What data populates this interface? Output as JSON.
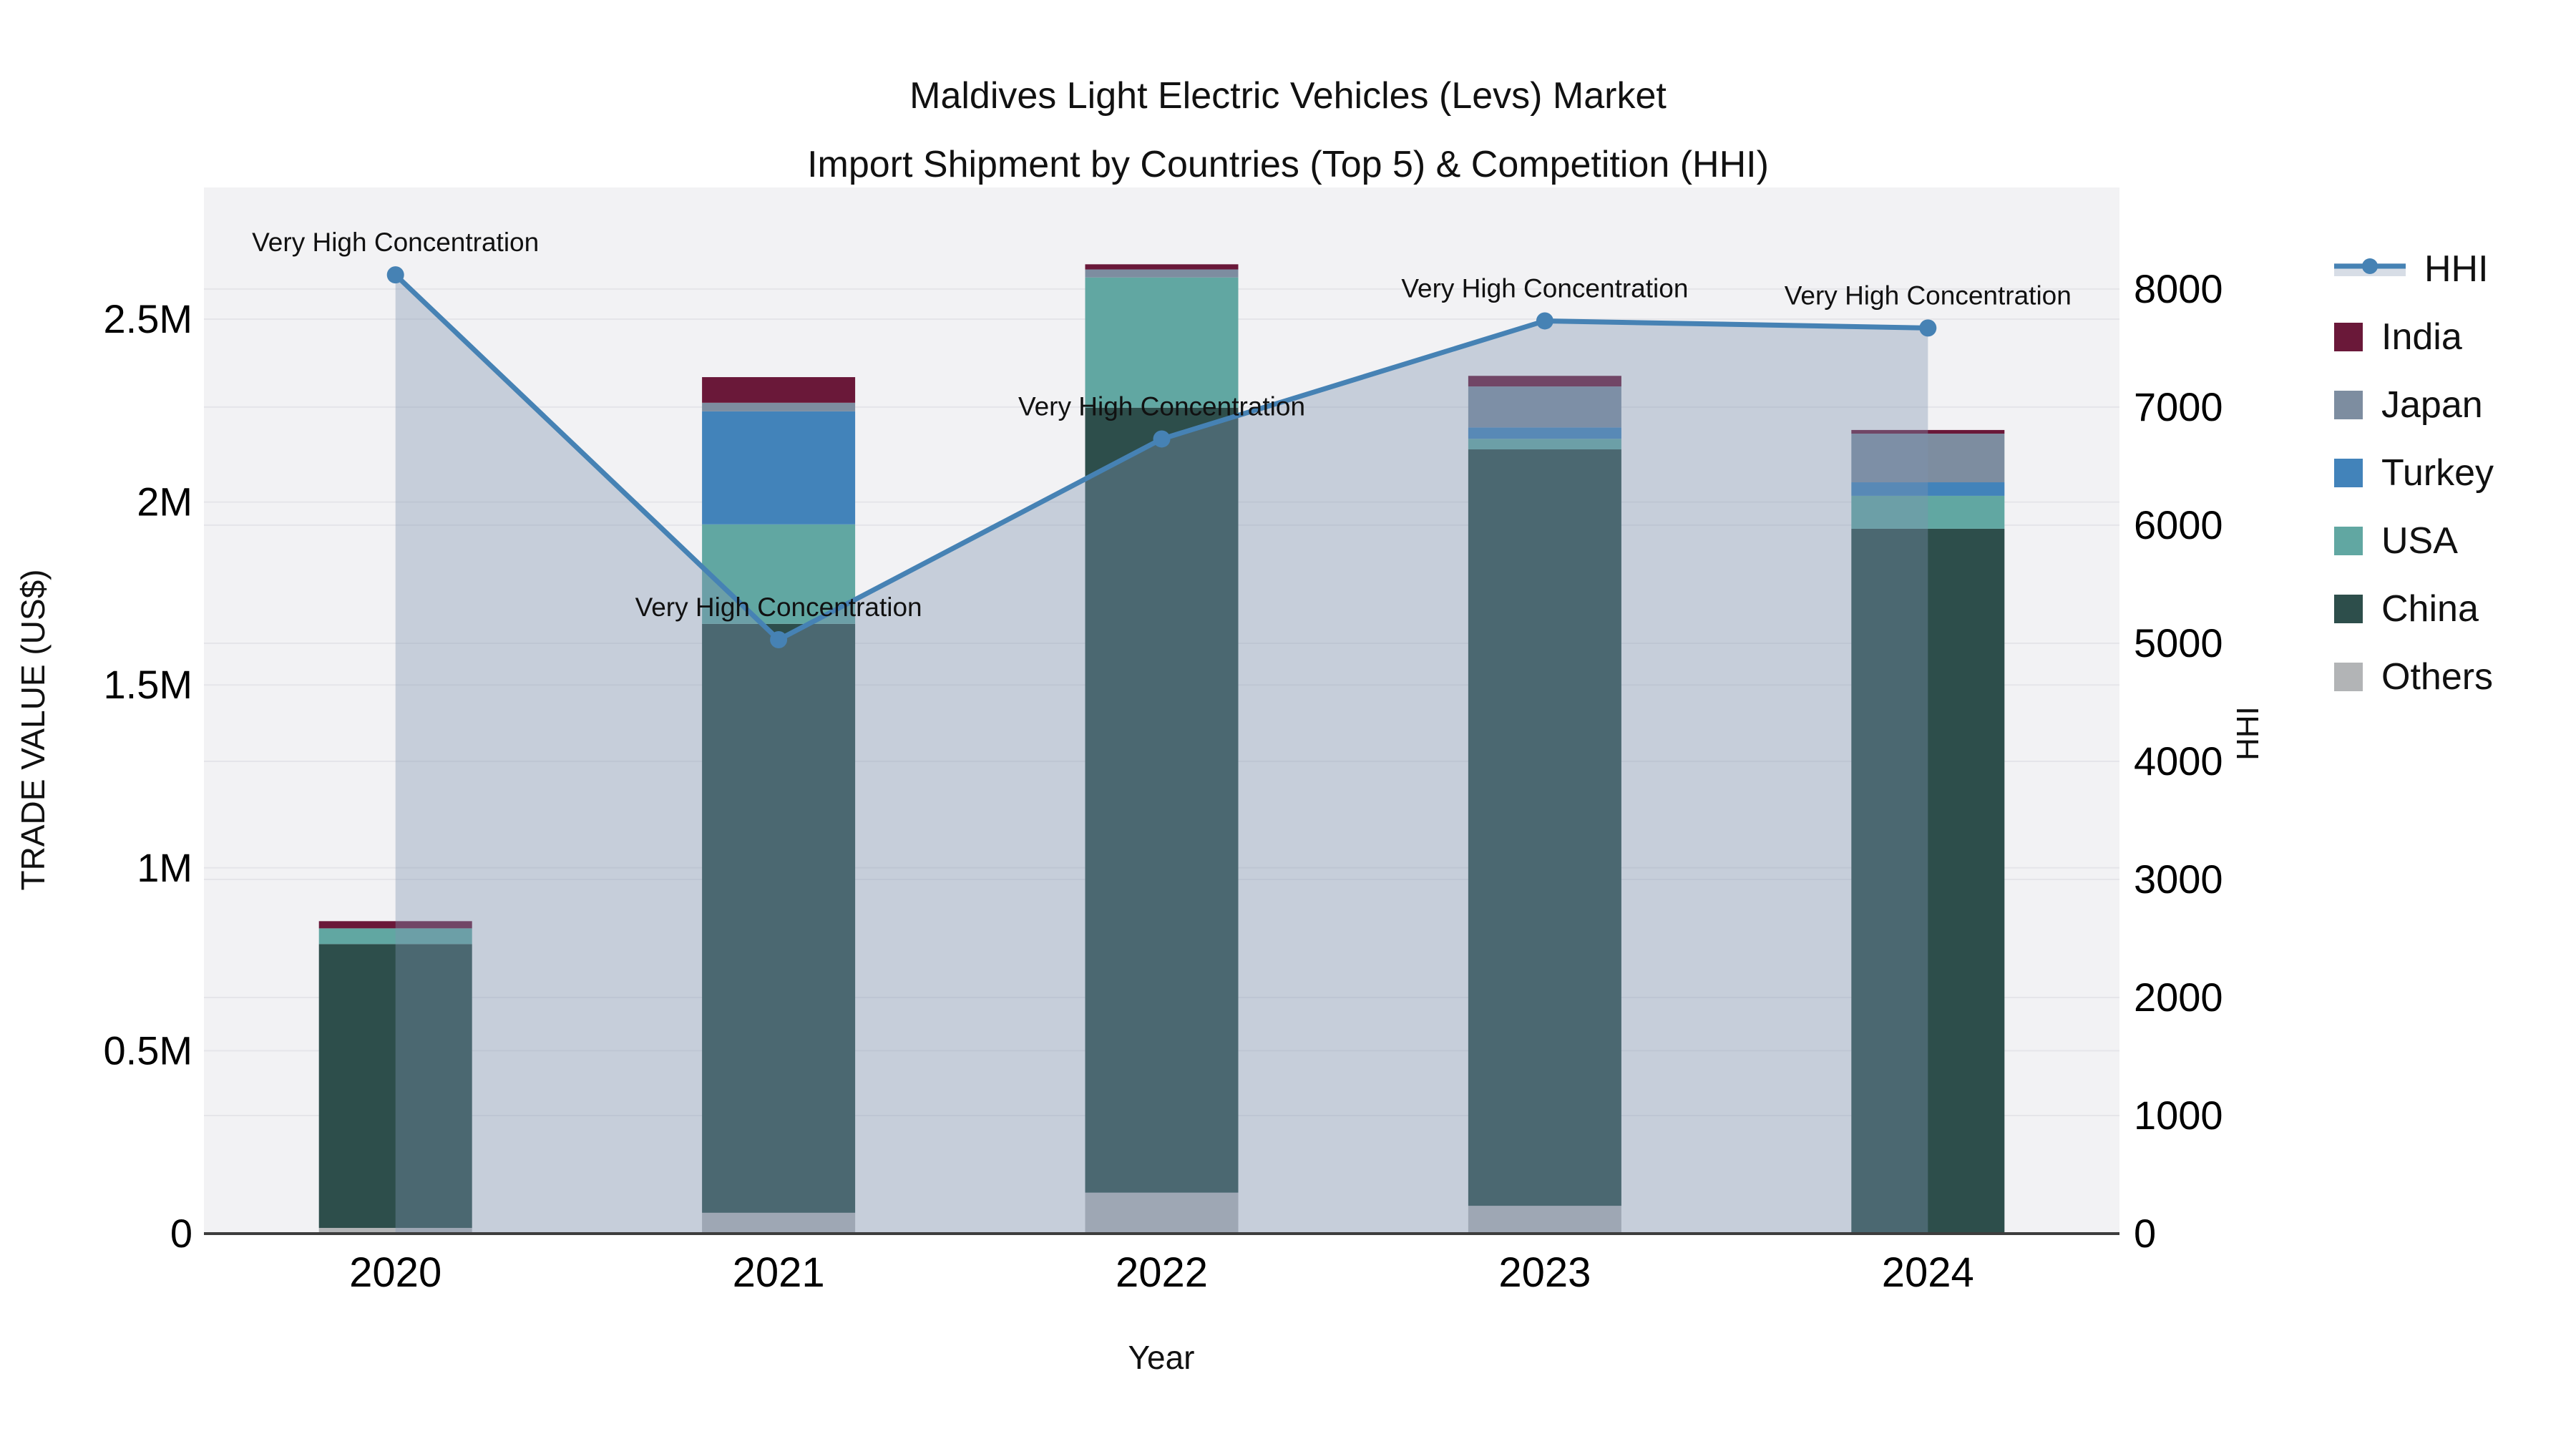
{
  "title": {
    "line1": "Maldives Light Electric Vehicles (Levs) Market",
    "line2": "Import Shipment by Countries (Top 5) & Competition (HHI)"
  },
  "axes": {
    "x_label": "Year",
    "y_left_label": "TRADE VALUE (US$)",
    "y_right_label": "HHI"
  },
  "legend": [
    {
      "label": "HHI",
      "type": "line",
      "color": "#4682b4",
      "band_color": "#d7dde6"
    },
    {
      "label": "India",
      "type": "square",
      "color": "#6a1839"
    },
    {
      "label": "Japan",
      "type": "square",
      "color": "#7d8da0"
    },
    {
      "label": "Turkey",
      "type": "square",
      "color": "#4283ba"
    },
    {
      "label": "USA",
      "type": "square",
      "color": "#61a7a2"
    },
    {
      "label": "China",
      "type": "square",
      "color": "#2d4e4b"
    },
    {
      "label": "Others",
      "type": "square",
      "color": "#b2b4b6"
    }
  ],
  "chart_data": {
    "type": "bar",
    "stacked": true,
    "title": "Maldives Light Electric Vehicles (Levs) Market — Import Shipment by Countries (Top 5) & Competition (HHI)",
    "xlabel": "Year",
    "ylabel_left": "TRADE VALUE (US$)",
    "ylabel_right": "HHI",
    "categories": [
      "2020",
      "2021",
      "2022",
      "2023",
      "2024"
    ],
    "series": [
      {
        "name": "Others",
        "color": "#b2b4b6",
        "values": [
          15600,
          57000,
          112000,
          76000,
          0
        ]
      },
      {
        "name": "China",
        "color": "#2d4e4b",
        "values": [
          776000,
          1610000,
          2146000,
          2068000,
          1927000
        ]
      },
      {
        "name": "USA",
        "color": "#61a7a2",
        "values": [
          43000,
          272000,
          356000,
          29000,
          90000
        ]
      },
      {
        "name": "Turkey",
        "color": "#4283ba",
        "values": [
          0,
          309000,
          0,
          31000,
          37000
        ]
      },
      {
        "name": "Japan",
        "color": "#7d8da0",
        "values": [
          0,
          23500,
          22000,
          112000,
          133000
        ]
      },
      {
        "name": "India",
        "color": "#6a1839",
        "values": [
          19600,
          70000,
          14000,
          29000,
          10000
        ]
      }
    ],
    "totals": [
      854200,
      2341500,
      2650000,
      2345000,
      2197000
    ],
    "line_series": {
      "name": "HHI",
      "axis": "right",
      "color": "#4682b4",
      "marker": "circle",
      "area_fill": "rgba(127,148,175,0.38)",
      "values": [
        8120,
        5030,
        6730,
        7730,
        7670
      ]
    },
    "annotations": [
      {
        "year": "2020",
        "text": "Very High Concentration"
      },
      {
        "year": "2021",
        "text": "Very High Concentration"
      },
      {
        "year": "2022",
        "text": "Very High Concentration"
      },
      {
        "year": "2023",
        "text": "Very High Concentration"
      },
      {
        "year": "2024",
        "text": "Very High Concentration"
      }
    ],
    "ylim_left": [
      0,
      2860000
    ],
    "ylim_right": [
      0,
      8860
    ],
    "yticks_left": {
      "values": [
        0,
        500000,
        1000000,
        1500000,
        2000000,
        2500000
      ],
      "labels": [
        "0",
        "0.5M",
        "1M",
        "1.5M",
        "2M",
        "2.5M"
      ]
    },
    "yticks_right": {
      "values": [
        0,
        1000,
        2000,
        3000,
        4000,
        5000,
        6000,
        7000,
        8000
      ],
      "labels": [
        "0",
        "1000",
        "2000",
        "3000",
        "4000",
        "5000",
        "6000",
        "7000",
        "8000"
      ]
    },
    "grid": true,
    "legend_position": "right",
    "plot_bg": "#f2f2f4",
    "grid_color": "#e5e5e9",
    "axis_line_color": "#3d3d3d",
    "text_color": "#111111"
  }
}
